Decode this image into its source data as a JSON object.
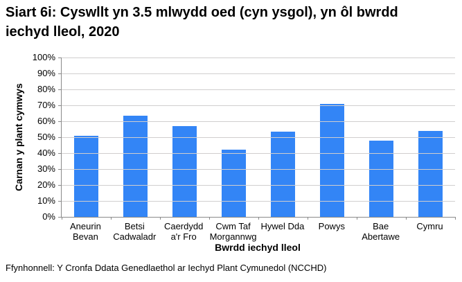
{
  "source_note": "Ffynhonnell: Y Cronfa Ddata Genedlaethol ar Iechyd Plant Cymunedol (NCCHD)",
  "chart_data": {
    "type": "bar",
    "title": "Siart 6i: Cyswllt yn 3.5 mlwydd oed (cyn ysgol), yn ôl bwrdd iechyd lleol, 2020",
    "categories": [
      "Aneurin Bevan",
      "Betsi Cadwaladr",
      "Caerdydd a'r Fro",
      "Cwm Taf Morgannwg",
      "Hywel Dda",
      "Powys",
      "Bae Abertawe",
      "Cymru"
    ],
    "values": [
      51,
      63.5,
      57,
      42,
      53.5,
      71,
      48,
      54
    ],
    "xlabel": "Bwrdd iechyd lleol",
    "ylabel": "Carnan y plant cymwys",
    "ylim": [
      0,
      100
    ],
    "ytick_step": 10,
    "ytick_labels": [
      "0%",
      "10%",
      "20%",
      "30%",
      "40%",
      "50%",
      "60%",
      "70%",
      "80%",
      "90%",
      "100%"
    ],
    "grid": "horizontal",
    "legend": "none",
    "colors": {
      "bar": "#3385F6",
      "gridline": "#D0CECE",
      "axis": "#898989",
      "text": "#000000",
      "background": "#FFFFFF"
    }
  }
}
